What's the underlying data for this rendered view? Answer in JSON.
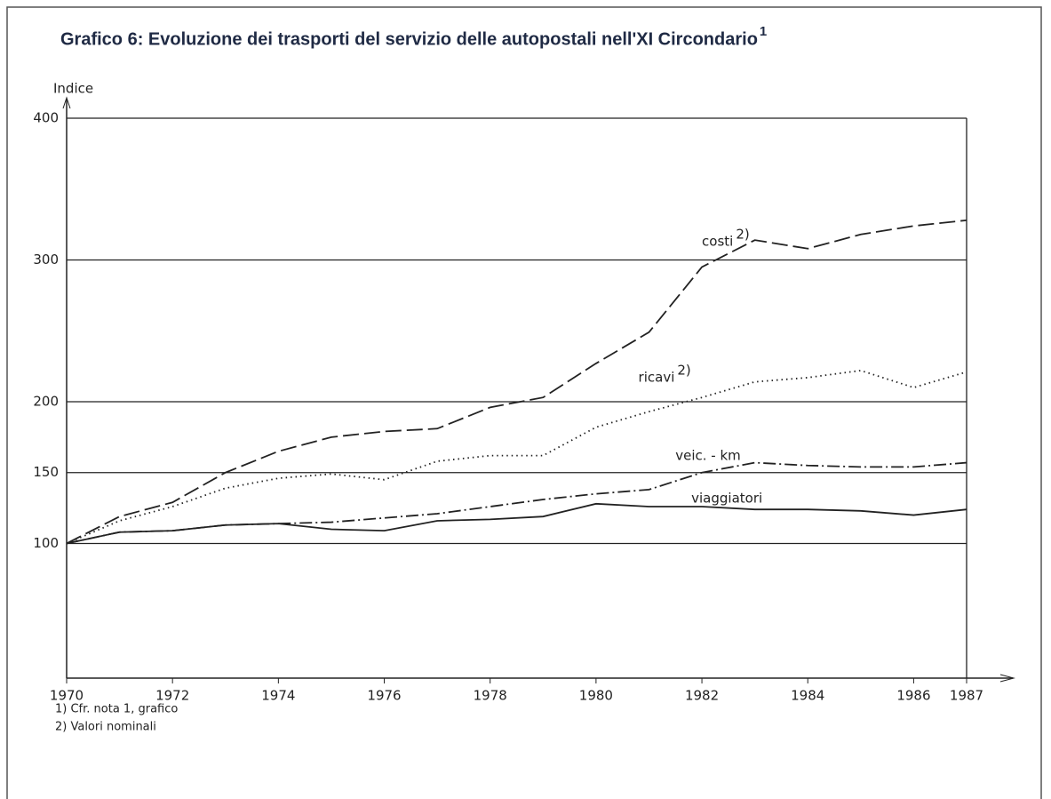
{
  "chart_data": {
    "type": "line",
    "title": "Grafico 6: Evoluzione dei trasporti del servizio delle autopostali nell'XI Circondario",
    "title_note": "1",
    "y_label": "Indice",
    "x": [
      1970,
      1971,
      1972,
      1973,
      1974,
      1975,
      1976,
      1977,
      1978,
      1979,
      1980,
      1981,
      1982,
      1983,
      1984,
      1985,
      1986,
      1987
    ],
    "xlim": [
      1970,
      1987
    ],
    "xticks": [
      1970,
      1972,
      1974,
      1976,
      1978,
      1980,
      1982,
      1984,
      1986,
      1987
    ],
    "ylim": [
      5,
      400
    ],
    "yticks": [
      100,
      150,
      200,
      300,
      400
    ],
    "grid": true,
    "series": [
      {
        "name": "costi",
        "note": "2)",
        "color": "#222222",
        "dash": "18 6",
        "values": [
          100,
          119,
          129,
          150,
          165,
          175,
          179,
          181,
          196,
          203,
          227,
          249,
          295,
          314,
          308,
          318,
          324,
          328
        ]
      },
      {
        "name": "ricavi",
        "note": "2)",
        "color": "#222222",
        "dash": "1.5 4",
        "values": [
          100,
          116,
          126,
          139,
          146,
          149,
          145,
          158,
          162,
          162,
          182,
          193,
          203,
          214,
          217,
          222,
          210,
          221
        ]
      },
      {
        "name": "veic. - km",
        "color": "#222222",
        "dash": "14 4 2 4",
        "values": [
          100,
          108,
          109,
          113,
          114,
          115,
          118,
          121,
          126,
          131,
          135,
          138,
          150,
          157,
          155,
          154,
          154,
          157
        ]
      },
      {
        "name": "viaggiatori",
        "color": "#222222",
        "dash": "none",
        "values": [
          100,
          108,
          109,
          113,
          114,
          110,
          109,
          116,
          117,
          119,
          128,
          126,
          126,
          124,
          124,
          123,
          120,
          124
        ]
      }
    ],
    "footnotes": [
      "1) Cfr. nota 1, grafico",
      "2) Valori nominali"
    ]
  }
}
